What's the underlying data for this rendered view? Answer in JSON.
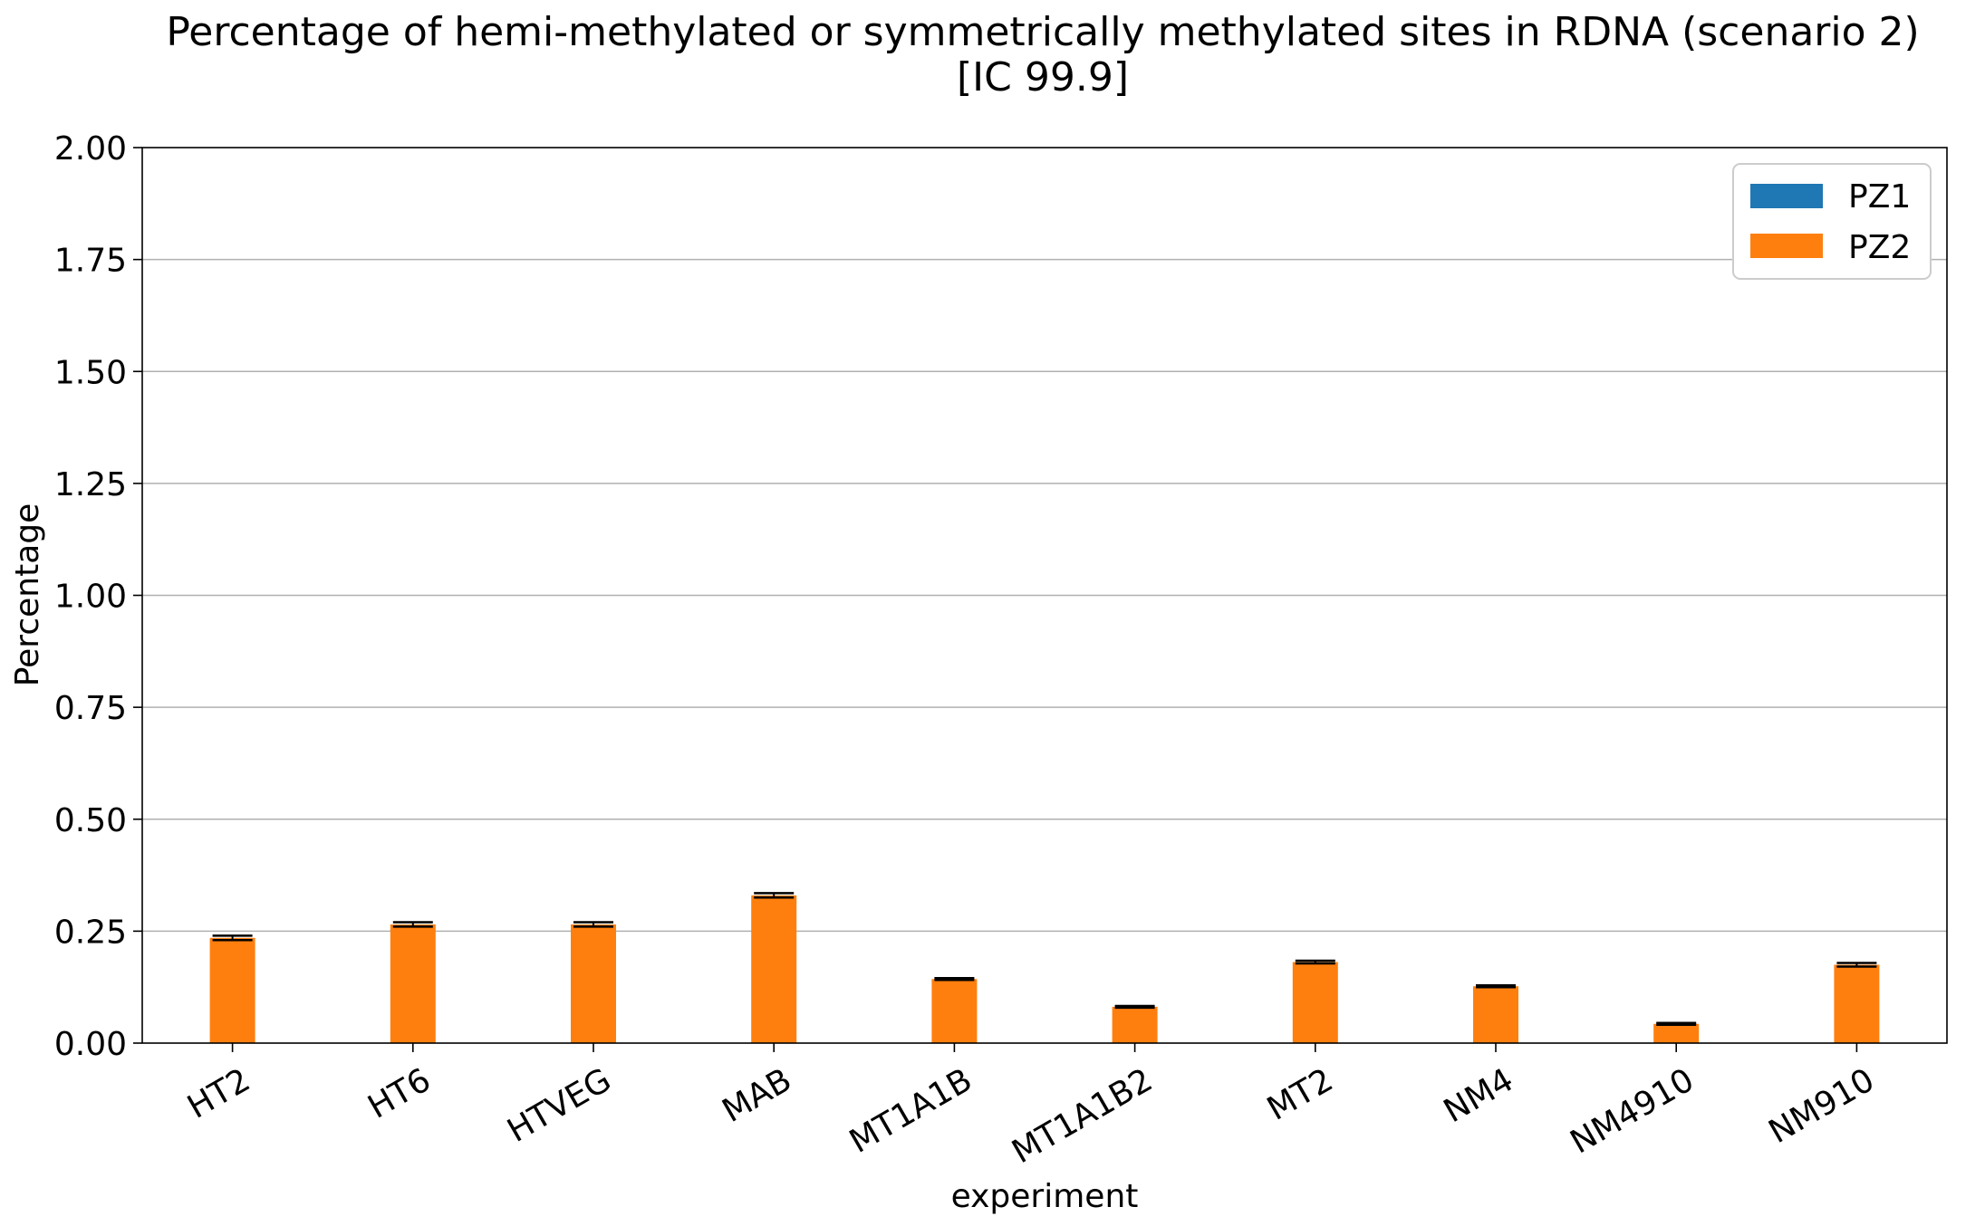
{
  "chart_data": {
    "type": "bar",
    "title": [
      "Percentage of hemi-methylated or symmetrically methylated sites in RDNA (scenario 2)",
      "[IC 99.9]"
    ],
    "xlabel": "experiment",
    "ylabel": "Percentage",
    "ylim": [
      0,
      2.0
    ],
    "yticks": [
      "0.00",
      "0.25",
      "0.50",
      "0.75",
      "1.00",
      "1.25",
      "1.50",
      "1.75",
      "2.00"
    ],
    "categories": [
      "HT2",
      "HT6",
      "HTVEG",
      "MAB",
      "MT1A1B",
      "MT1A1B2",
      "MT2",
      "NM4",
      "NM4910",
      "NM910"
    ],
    "series": [
      {
        "name": "PZ1",
        "color": "#1f77b4",
        "values": [
          0,
          0,
          0,
          0,
          0,
          0,
          0,
          0,
          0,
          0
        ]
      },
      {
        "name": "PZ2",
        "color": "#ff7f0e",
        "values": [
          0.235,
          0.265,
          0.265,
          0.33,
          0.143,
          0.081,
          0.181,
          0.127,
          0.043,
          0.175
        ],
        "err": [
          0.005,
          0.005,
          0.005,
          0.005,
          0.002,
          0.002,
          0.003,
          0.002,
          0.002,
          0.004
        ]
      }
    ],
    "grid": "y",
    "legend_position": "top-right"
  }
}
